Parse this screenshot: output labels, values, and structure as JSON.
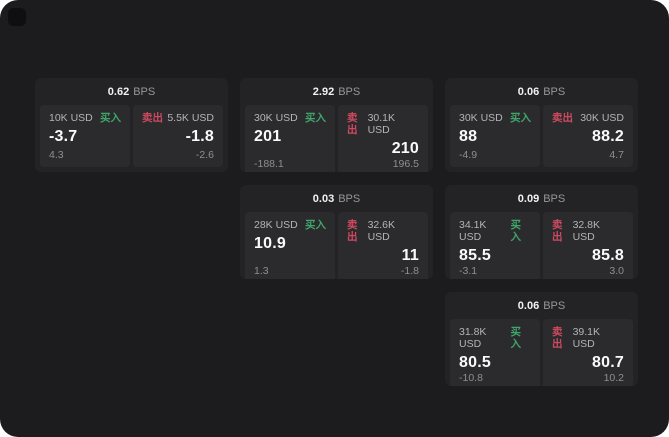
{
  "labels": {
    "bps": "BPS",
    "buy": "买入",
    "sell": "卖出"
  },
  "colors": {
    "buy": "#3fa56a",
    "sell": "#cf4a60",
    "app_bg": "#1c1c1e",
    "card_bg": "#232325",
    "panel_bg": "#2b2b2d"
  },
  "cards": [
    {
      "col": 1,
      "row": 1,
      "bps": "0.62",
      "buy": {
        "amount": "10K USD",
        "value": "-3.7",
        "sub": "4.3"
      },
      "sell": {
        "amount": "5.5K USD",
        "value": "-1.8",
        "sub": "-2.6"
      }
    },
    {
      "col": 2,
      "row": 1,
      "bps": "2.92",
      "buy": {
        "amount": "30K USD",
        "value": "201",
        "sub": "-188.1"
      },
      "sell": {
        "amount": "30.1K USD",
        "value": "210",
        "sub": "196.5"
      }
    },
    {
      "col": 3,
      "row": 1,
      "bps": "0.06",
      "buy": {
        "amount": "30K USD",
        "value": "88",
        "sub": "-4.9"
      },
      "sell": {
        "amount": "30K USD",
        "value": "88.2",
        "sub": "4.7"
      }
    },
    {
      "col": 2,
      "row": 2,
      "bps": "0.03",
      "buy": {
        "amount": "28K USD",
        "value": "10.9",
        "sub": "1.3"
      },
      "sell": {
        "amount": "32.6K USD",
        "value": "11",
        "sub": "-1.8"
      }
    },
    {
      "col": 3,
      "row": 2,
      "bps": "0.09",
      "buy": {
        "amount": "34.1K USD",
        "value": "85.5",
        "sub": "-3.1"
      },
      "sell": {
        "amount": "32.8K USD",
        "value": "85.8",
        "sub": "3.0"
      }
    },
    {
      "col": 3,
      "row": 3,
      "bps": "0.06",
      "buy": {
        "amount": "31.8K USD",
        "value": "80.5",
        "sub": "-10.8"
      },
      "sell": {
        "amount": "39.1K USD",
        "value": "80.7",
        "sub": "10.2"
      }
    }
  ]
}
